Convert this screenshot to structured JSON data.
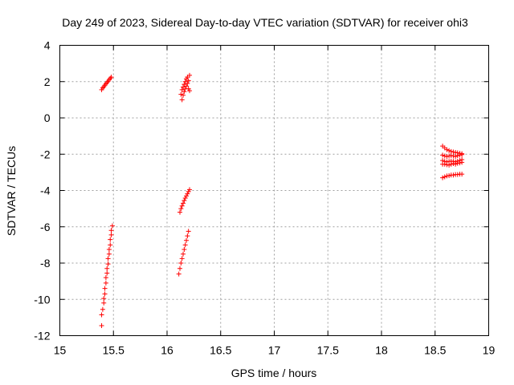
{
  "chart_data": {
    "type": "scatter",
    "title": "Day 249 of 2023, Sidereal Day-to-day VTEC variation (SDTVAR) for receiver ohi3",
    "xlabel": "GPS time / hours",
    "ylabel": "SDTVAR / TECUs",
    "xlim": [
      15,
      19
    ],
    "ylim": [
      -12,
      4
    ],
    "xticks": [
      15,
      15.5,
      16,
      16.5,
      17,
      17.5,
      18,
      18.5,
      19
    ],
    "xtick_labels": [
      "15",
      "15.5",
      "16",
      "16.5",
      "17",
      "17.5",
      "18",
      "18.5",
      "19"
    ],
    "yticks": [
      -12,
      -10,
      -8,
      -6,
      -4,
      -2,
      0,
      2,
      4
    ],
    "ytick_labels": [
      "-12",
      "-10",
      "-8",
      "-6",
      "-4",
      "-2",
      "0",
      "2",
      "4"
    ],
    "grid": true,
    "marker": "plus",
    "color": "#ff0000",
    "series": [
      {
        "name": "arc-15.4-upper",
        "points": [
          [
            15.39,
            1.55
          ],
          [
            15.4,
            1.65
          ],
          [
            15.41,
            1.72
          ],
          [
            15.42,
            1.8
          ],
          [
            15.43,
            1.88
          ],
          [
            15.44,
            1.95
          ],
          [
            15.45,
            2.02
          ],
          [
            15.46,
            2.1
          ],
          [
            15.47,
            2.18
          ],
          [
            15.48,
            2.25
          ]
        ]
      },
      {
        "name": "arc-15.4-lower",
        "points": [
          [
            15.39,
            -11.45
          ],
          [
            15.39,
            -10.85
          ],
          [
            15.4,
            -10.55
          ],
          [
            15.41,
            -10.2
          ],
          [
            15.41,
            -9.95
          ],
          [
            15.42,
            -9.7
          ],
          [
            15.42,
            -9.4
          ],
          [
            15.43,
            -9.1
          ],
          [
            15.43,
            -8.8
          ],
          [
            15.44,
            -8.55
          ],
          [
            15.44,
            -8.3
          ],
          [
            15.45,
            -8.05
          ],
          [
            15.45,
            -7.75
          ],
          [
            15.46,
            -7.5
          ],
          [
            15.46,
            -7.25
          ],
          [
            15.47,
            -7.0
          ],
          [
            15.47,
            -6.7
          ],
          [
            15.48,
            -6.45
          ],
          [
            15.48,
            -6.2
          ],
          [
            15.49,
            -5.95
          ]
        ]
      },
      {
        "name": "arc-16.1-upper",
        "points": [
          [
            16.13,
            1.3
          ],
          [
            16.14,
            1.0
          ],
          [
            16.14,
            1.55
          ],
          [
            16.15,
            1.25
          ],
          [
            16.15,
            1.7
          ],
          [
            16.16,
            1.45
          ],
          [
            16.16,
            1.85
          ],
          [
            16.17,
            1.6
          ],
          [
            16.17,
            2.0
          ],
          [
            16.18,
            1.75
          ],
          [
            16.18,
            2.15
          ],
          [
            16.19,
            1.9
          ],
          [
            16.19,
            2.25
          ],
          [
            16.2,
            2.05
          ],
          [
            16.2,
            1.6
          ],
          [
            16.21,
            2.35
          ],
          [
            16.21,
            1.5
          ]
        ]
      },
      {
        "name": "arc-16.1-middle",
        "points": [
          [
            16.12,
            -5.2
          ],
          [
            16.13,
            -5.0
          ],
          [
            16.14,
            -4.85
          ],
          [
            16.15,
            -4.7
          ],
          [
            16.16,
            -4.55
          ],
          [
            16.17,
            -4.42
          ],
          [
            16.18,
            -4.3
          ],
          [
            16.19,
            -4.18
          ],
          [
            16.2,
            -4.06
          ],
          [
            16.21,
            -3.95
          ]
        ]
      },
      {
        "name": "arc-16.1-lower",
        "points": [
          [
            16.11,
            -8.6
          ],
          [
            16.12,
            -8.3
          ],
          [
            16.13,
            -8.0
          ],
          [
            16.14,
            -7.75
          ],
          [
            16.15,
            -7.5
          ],
          [
            16.16,
            -7.25
          ],
          [
            16.17,
            -7.0
          ],
          [
            16.18,
            -6.75
          ],
          [
            16.19,
            -6.5
          ],
          [
            16.2,
            -6.25
          ]
        ]
      },
      {
        "name": "arc-18.6-top",
        "points": [
          [
            18.57,
            -1.55
          ],
          [
            18.59,
            -1.65
          ],
          [
            18.61,
            -1.75
          ],
          [
            18.63,
            -1.8
          ],
          [
            18.65,
            -1.85
          ],
          [
            18.67,
            -1.88
          ],
          [
            18.69,
            -1.9
          ],
          [
            18.71,
            -1.92
          ],
          [
            18.73,
            -1.95
          ],
          [
            18.75,
            -1.97
          ]
        ]
      },
      {
        "name": "arc-18.6-band-a",
        "points": [
          [
            18.57,
            -2.05
          ],
          [
            18.59,
            -2.1
          ],
          [
            18.61,
            -2.12
          ],
          [
            18.63,
            -2.1
          ],
          [
            18.65,
            -2.08
          ],
          [
            18.67,
            -2.1
          ],
          [
            18.69,
            -2.12
          ],
          [
            18.71,
            -2.08
          ],
          [
            18.73,
            -2.05
          ],
          [
            18.75,
            -2.02
          ]
        ]
      },
      {
        "name": "arc-18.6-band-b",
        "points": [
          [
            18.57,
            -2.35
          ],
          [
            18.59,
            -2.4
          ],
          [
            18.61,
            -2.42
          ],
          [
            18.63,
            -2.4
          ],
          [
            18.65,
            -2.38
          ],
          [
            18.67,
            -2.4
          ],
          [
            18.69,
            -2.42
          ],
          [
            18.71,
            -2.38
          ],
          [
            18.73,
            -2.35
          ],
          [
            18.75,
            -2.3
          ]
        ]
      },
      {
        "name": "arc-18.6-band-c",
        "points": [
          [
            18.57,
            -2.55
          ],
          [
            18.59,
            -2.55
          ],
          [
            18.61,
            -2.58
          ],
          [
            18.63,
            -2.6
          ],
          [
            18.65,
            -2.55
          ],
          [
            18.67,
            -2.52
          ],
          [
            18.69,
            -2.55
          ],
          [
            18.71,
            -2.5
          ],
          [
            18.73,
            -2.48
          ],
          [
            18.75,
            -2.45
          ]
        ]
      },
      {
        "name": "arc-18.6-bottom",
        "points": [
          [
            18.57,
            -3.3
          ],
          [
            18.59,
            -3.25
          ],
          [
            18.61,
            -3.2
          ],
          [
            18.63,
            -3.18
          ],
          [
            18.65,
            -3.15
          ],
          [
            18.67,
            -3.15
          ],
          [
            18.69,
            -3.12
          ],
          [
            18.71,
            -3.12
          ],
          [
            18.73,
            -3.1
          ],
          [
            18.75,
            -3.1
          ]
        ]
      }
    ]
  }
}
